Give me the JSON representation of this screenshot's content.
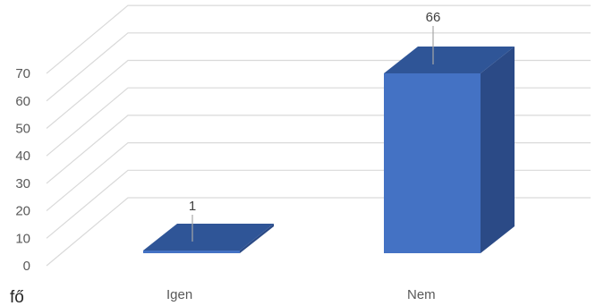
{
  "chart_data": {
    "type": "bar",
    "title": "",
    "categories": [
      "Igen",
      "Nem"
    ],
    "values": [
      1,
      66
    ],
    "data_labels": [
      "1",
      "66"
    ],
    "ylim": [
      0,
      70
    ],
    "yticks": [
      0,
      10,
      20,
      30,
      40,
      50,
      60,
      70
    ],
    "ytick_labels": [
      "0",
      "10",
      "20",
      "30",
      "40",
      "50",
      "60",
      "70"
    ],
    "unit_label": "fő",
    "grid": true,
    "style": "3d",
    "colors": {
      "front": "#4472c4",
      "top": "#2f5597",
      "side": "#2b4a86",
      "grid": "#d9d9d9"
    }
  }
}
